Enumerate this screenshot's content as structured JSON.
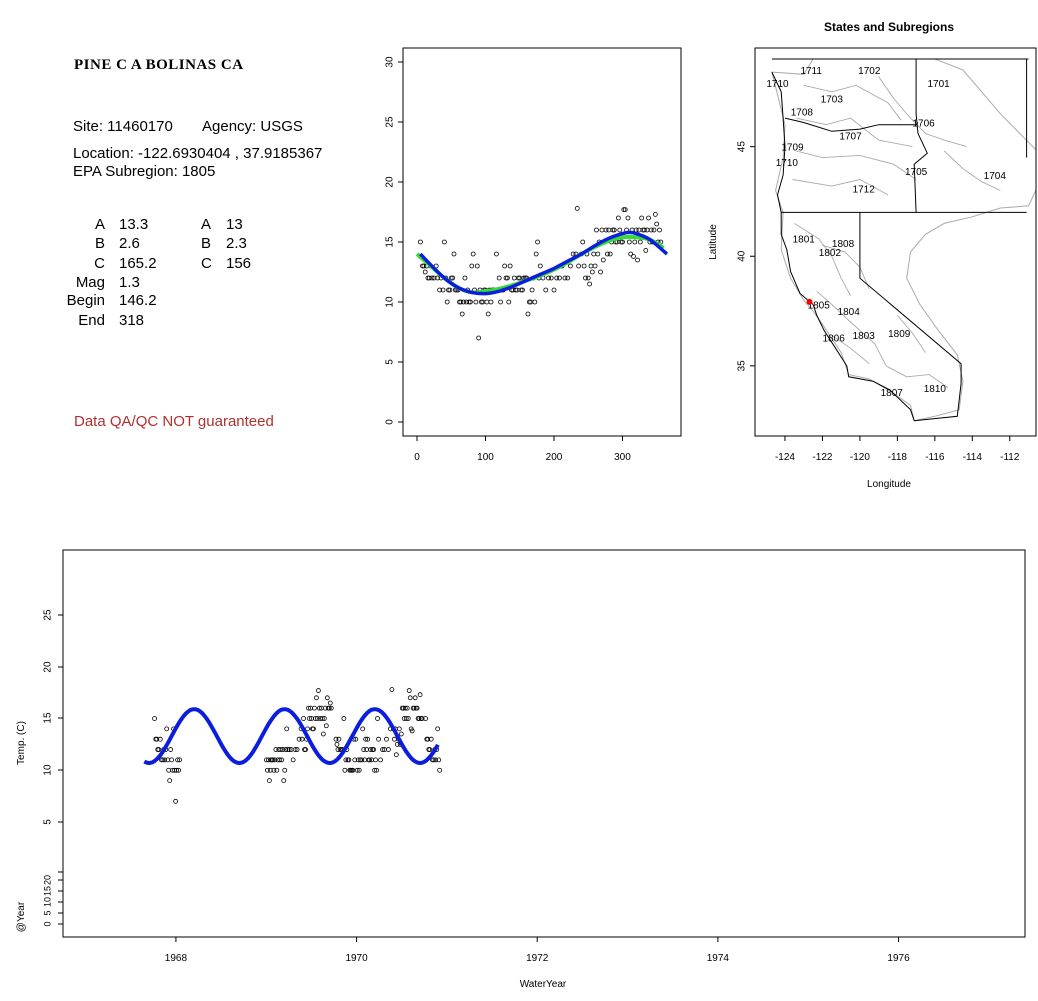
{
  "site": {
    "name": "PINE C A BOLINAS CA",
    "site_line": "Site: 11460170",
    "agency_line": "Agency: USGS",
    "location_line": "Location: -122.6930404 , 37.9185367",
    "subregion_line": "EPA Subregion: 1805",
    "qa_note": "Data QA/QC NOT guaranteed"
  },
  "params": {
    "rows": [
      {
        "label": "A",
        "value": "13.3",
        "label2": "A",
        "value2": "13"
      },
      {
        "label": "B",
        "value": "2.6",
        "label2": "B",
        "value2": "2.3"
      },
      {
        "label": "C",
        "value": "165.2",
        "label2": "C",
        "value2": "156"
      },
      {
        "label": "Mag",
        "value": "1.3"
      },
      {
        "label": "Begin",
        "value": "146.2"
      },
      {
        "label": "End",
        "value": "318"
      }
    ]
  },
  "colors": {
    "fit_blue": "#0b1ee0",
    "fit_green": "#33dd33",
    "qa_text": "#b03030",
    "map_gray": "#aaaaaa",
    "site_marker": "#ff0000"
  },
  "chart_data": [
    {
      "type": "scatter",
      "id": "seasonal",
      "xlim": [
        0,
        365
      ],
      "ylim": [
        0,
        30
      ],
      "x_ticks": [
        "0",
        "100",
        "200",
        "300"
      ],
      "y_ticks": [
        "0",
        "5",
        "10",
        "15",
        "20",
        "25",
        "30"
      ],
      "points": [
        [
          5,
          15
        ],
        [
          8,
          13
        ],
        [
          10,
          13
        ],
        [
          12,
          12.5
        ],
        [
          14,
          13
        ],
        [
          16,
          12
        ],
        [
          18,
          12
        ],
        [
          20,
          13
        ],
        [
          22,
          12
        ],
        [
          25,
          12
        ],
        [
          28,
          13
        ],
        [
          30,
          12
        ],
        [
          33,
          11
        ],
        [
          35,
          12
        ],
        [
          38,
          11
        ],
        [
          40,
          15
        ],
        [
          42,
          12
        ],
        [
          44,
          10
        ],
        [
          46,
          11
        ],
        [
          48,
          11
        ],
        [
          50,
          12
        ],
        [
          52,
          12
        ],
        [
          54,
          14
        ],
        [
          56,
          11
        ],
        [
          58,
          11
        ],
        [
          60,
          11
        ],
        [
          62,
          10
        ],
        [
          64,
          10
        ],
        [
          66,
          9
        ],
        [
          68,
          10
        ],
        [
          70,
          12
        ],
        [
          72,
          10
        ],
        [
          74,
          11
        ],
        [
          76,
          10
        ],
        [
          78,
          10
        ],
        [
          80,
          13
        ],
        [
          82,
          14
        ],
        [
          84,
          11
        ],
        [
          86,
          10
        ],
        [
          88,
          13
        ],
        [
          90,
          7
        ],
        [
          92,
          11
        ],
        [
          94,
          10
        ],
        [
          96,
          10
        ],
        [
          98,
          11
        ],
        [
          100,
          11
        ],
        [
          102,
          10
        ],
        [
          104,
          9
        ],
        [
          106,
          11
        ],
        [
          108,
          10
        ],
        [
          110,
          11
        ],
        [
          112,
          11
        ],
        [
          114,
          11
        ],
        [
          116,
          14
        ],
        [
          118,
          11
        ],
        [
          120,
          12
        ],
        [
          122,
          10
        ],
        [
          124,
          11
        ],
        [
          126,
          11
        ],
        [
          128,
          13
        ],
        [
          130,
          12
        ],
        [
          132,
          12
        ],
        [
          134,
          10
        ],
        [
          136,
          13
        ],
        [
          138,
          11
        ],
        [
          140,
          11
        ],
        [
          142,
          12
        ],
        [
          144,
          11
        ],
        [
          146,
          11
        ],
        [
          148,
          12
        ],
        [
          150,
          12
        ],
        [
          152,
          11
        ],
        [
          154,
          11
        ],
        [
          156,
          12
        ],
        [
          158,
          12
        ],
        [
          160,
          12
        ],
        [
          162,
          9
        ],
        [
          164,
          10
        ],
        [
          166,
          10
        ],
        [
          168,
          11
        ],
        [
          170,
          12
        ],
        [
          172,
          10
        ],
        [
          174,
          14
        ],
        [
          176,
          15
        ],
        [
          178,
          12
        ],
        [
          180,
          13
        ],
        [
          184,
          12
        ],
        [
          188,
          11
        ],
        [
          192,
          12
        ],
        [
          196,
          12
        ],
        [
          200,
          11
        ],
        [
          204,
          12
        ],
        [
          208,
          12
        ],
        [
          212,
          13
        ],
        [
          216,
          12
        ],
        [
          220,
          12
        ],
        [
          224,
          13
        ],
        [
          228,
          14
        ],
        [
          232,
          14
        ],
        [
          234,
          17.8
        ],
        [
          236,
          13
        ],
        [
          240,
          14
        ],
        [
          242,
          15
        ],
        [
          244,
          13
        ],
        [
          246,
          12
        ],
        [
          248,
          14
        ],
        [
          250,
          12
        ],
        [
          252,
          11.5
        ],
        [
          254,
          13
        ],
        [
          256,
          12.5
        ],
        [
          258,
          14
        ],
        [
          260,
          13
        ],
        [
          262,
          16
        ],
        [
          264,
          14
        ],
        [
          266,
          15
        ],
        [
          268,
          12.5
        ],
        [
          270,
          16
        ],
        [
          272,
          13.5
        ],
        [
          274,
          15
        ],
        [
          276,
          16
        ],
        [
          278,
          14
        ],
        [
          280,
          16
        ],
        [
          282,
          14
        ],
        [
          284,
          15
        ],
        [
          286,
          16
        ],
        [
          288,
          16
        ],
        [
          290,
          15
        ],
        [
          292,
          15
        ],
        [
          294,
          17
        ],
        [
          296,
          16
        ],
        [
          298,
          15
        ],
        [
          300,
          15
        ],
        [
          302,
          17.7
        ],
        [
          304,
          17.7
        ],
        [
          306,
          16
        ],
        [
          308,
          17
        ],
        [
          310,
          15
        ],
        [
          312,
          14
        ],
        [
          314,
          16
        ],
        [
          316,
          13.8
        ],
        [
          318,
          15
        ],
        [
          320,
          16
        ],
        [
          322,
          13.5
        ],
        [
          324,
          16
        ],
        [
          326,
          15
        ],
        [
          328,
          17
        ],
        [
          330,
          16
        ],
        [
          332,
          16
        ],
        [
          334,
          14.3
        ],
        [
          336,
          16
        ],
        [
          338,
          17
        ],
        [
          340,
          15
        ],
        [
          342,
          16
        ],
        [
          344,
          15
        ],
        [
          346,
          16
        ],
        [
          348,
          17.3
        ],
        [
          350,
          16.5
        ],
        [
          352,
          15
        ],
        [
          354,
          16
        ],
        [
          356,
          15
        ]
      ],
      "fit_green": [
        [
          0,
          14
        ],
        [
          20,
          13
        ],
        [
          40,
          12
        ],
        [
          60,
          11.2
        ],
        [
          80,
          10.8
        ],
        [
          100,
          10.9
        ],
        [
          120,
          11.1
        ],
        [
          140,
          11.4
        ],
        [
          160,
          11.8
        ],
        [
          180,
          12.2
        ],
        [
          200,
          12.7
        ],
        [
          220,
          13.3
        ],
        [
          240,
          14
        ],
        [
          260,
          14.6
        ],
        [
          280,
          15.1
        ],
        [
          300,
          15.4
        ],
        [
          320,
          15.4
        ],
        [
          340,
          15.2
        ],
        [
          360,
          14.5
        ]
      ],
      "fit_blue": [
        [
          5,
          14
        ],
        [
          20,
          13.1
        ],
        [
          40,
          12
        ],
        [
          60,
          11.2
        ],
        [
          80,
          10.8
        ],
        [
          100,
          10.7
        ],
        [
          120,
          10.9
        ],
        [
          140,
          11.3
        ],
        [
          160,
          11.8
        ],
        [
          180,
          12.3
        ],
        [
          200,
          12.8
        ],
        [
          220,
          13.4
        ],
        [
          240,
          14
        ],
        [
          260,
          14.7
        ],
        [
          280,
          15.3
        ],
        [
          300,
          15.7
        ],
        [
          310,
          15.8
        ],
        [
          320,
          15.7
        ],
        [
          340,
          15.2
        ],
        [
          365,
          14
        ]
      ]
    },
    {
      "type": "map",
      "id": "subregions",
      "title": "States and Subregions",
      "xlabel": "Longitude",
      "ylabel": "Latitude",
      "xlim": [
        -125.6,
        -110.6
      ],
      "ylim": [
        31.8,
        49.5
      ],
      "x_ticks": [
        -124,
        -122,
        -120,
        -118,
        -116,
        -114,
        -112
      ],
      "y_ticks": [
        35,
        40,
        45
      ],
      "labels": [
        {
          "text": "1711",
          "lon": -122.6,
          "lat": 48.5
        },
        {
          "text": "1702",
          "lon": -119.5,
          "lat": 48.5
        },
        {
          "text": "1701",
          "lon": -115.8,
          "lat": 47.9
        },
        {
          "text": "1710",
          "lon": -124.4,
          "lat": 47.9
        },
        {
          "text": "1703",
          "lon": -121.5,
          "lat": 47.2
        },
        {
          "text": "1708",
          "lon": -123.1,
          "lat": 46.6
        },
        {
          "text": "1706",
          "lon": -116.6,
          "lat": 46.1
        },
        {
          "text": "1707",
          "lon": -120.5,
          "lat": 45.5
        },
        {
          "text": "1709",
          "lon": -123.6,
          "lat": 45.0
        },
        {
          "text": "1710",
          "lon": -123.9,
          "lat": 44.3
        },
        {
          "text": "1705",
          "lon": -117.0,
          "lat": 43.9
        },
        {
          "text": "1704",
          "lon": -112.8,
          "lat": 43.7
        },
        {
          "text": "1712",
          "lon": -119.8,
          "lat": 43.1
        },
        {
          "text": "1801",
          "lon": -123.0,
          "lat": 40.8
        },
        {
          "text": "1808",
          "lon": -120.9,
          "lat": 40.6
        },
        {
          "text": "1802",
          "lon": -121.6,
          "lat": 40.2
        },
        {
          "text": "1805",
          "lon": -122.2,
          "lat": 37.8
        },
        {
          "text": "1804",
          "lon": -120.6,
          "lat": 37.5
        },
        {
          "text": "1806",
          "lon": -121.4,
          "lat": 36.3
        },
        {
          "text": "1803",
          "lon": -119.8,
          "lat": 36.4
        },
        {
          "text": "1809",
          "lon": -117.9,
          "lat": 36.5
        },
        {
          "text": "1807",
          "lon": -118.3,
          "lat": 33.8
        },
        {
          "text": "1810",
          "lon": -116.0,
          "lat": 34.0
        }
      ],
      "site": {
        "lon": -122.69,
        "lat": 37.92
      }
    },
    {
      "type": "scatter",
      "id": "timeseries",
      "xlabel": "WaterYear",
      "ylabel": "Temp. (C)",
      "ylabel2": "@Year",
      "xlim": [
        1966.75,
        1977.4
      ],
      "ylim": [
        2,
        30
      ],
      "x_ticks": [
        "1968",
        "1970",
        "1972",
        "1974",
        "1976"
      ],
      "y_ticks": [
        "5",
        "10",
        "15",
        "20",
        "25"
      ],
      "y2_ticks": [
        "0",
        "5",
        "10",
        "15",
        "20"
      ],
      "fit_range": [
        1967.65,
        1970.9
      ]
    }
  ]
}
